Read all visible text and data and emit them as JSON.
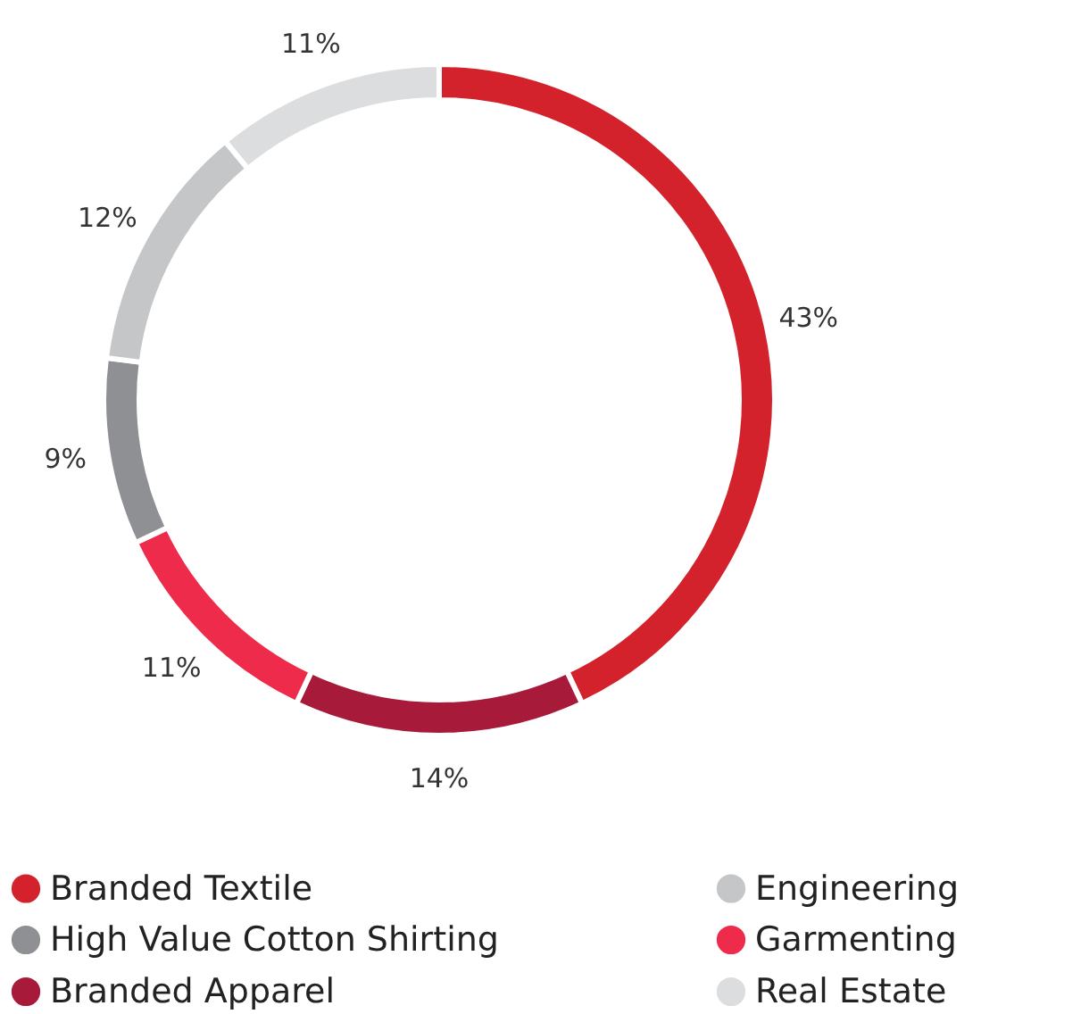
{
  "chart_data": {
    "type": "donut",
    "categories": [
      "Branded Textile",
      "Branded Apparel",
      "Garmenting",
      "High Value Cotton Shirting",
      "Engineering",
      "Real Estate"
    ],
    "values": [
      43,
      14,
      11,
      9,
      12,
      11
    ],
    "value_labels": [
      "43%",
      "14%",
      "11%",
      "9%",
      "12%",
      "11%"
    ],
    "colors": [
      "#d3222c",
      "#a81a3a",
      "#ee2b4b",
      "#8f9094",
      "#c5c6c8",
      "#dcdddf"
    ],
    "legend": "bottom"
  }
}
